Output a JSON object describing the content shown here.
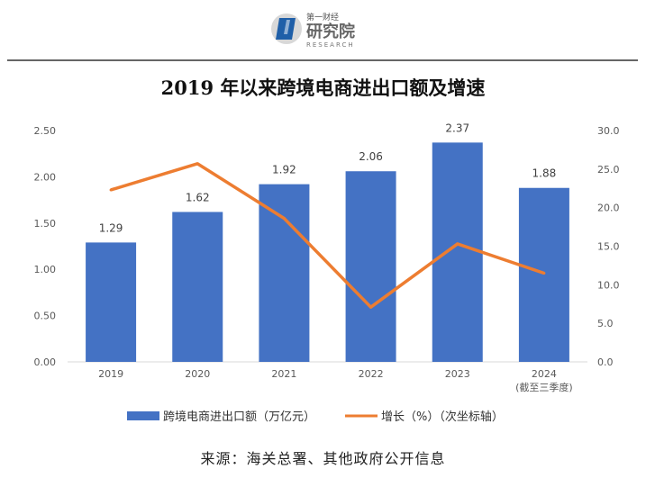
{
  "header": {
    "logo_top_text": "第一财经",
    "logo_main_text": "研究院",
    "logo_sub_text": "RESEARCH"
  },
  "chart_data": {
    "type": "bar",
    "title": "2019 年以来跨境电商进出口额及增速",
    "categories": [
      "2019",
      "2020",
      "2021",
      "2022",
      "2023",
      "2024"
    ],
    "category_sublabels": [
      "",
      "",
      "",
      "",
      "",
      "(截至三季度)"
    ],
    "series": [
      {
        "name": "跨境电商进出口额（万亿元）",
        "type": "bar",
        "axis": "left",
        "color": "#4472c4",
        "values": [
          1.29,
          1.62,
          1.92,
          2.06,
          2.37,
          1.88
        ],
        "data_labels": [
          "1.29",
          "1.62",
          "1.92",
          "2.06",
          "2.37",
          "1.88"
        ]
      },
      {
        "name": "增长（%）（次坐标轴）",
        "type": "line",
        "axis": "right",
        "color": "#ed7d31",
        "values": [
          22.3,
          25.7,
          18.6,
          7.1,
          15.3,
          11.5
        ]
      }
    ],
    "y_left": {
      "min": 0,
      "max": 2.5,
      "ticks": [
        "0.00",
        "0.50",
        "1.00",
        "1.50",
        "2.00",
        "2.50"
      ]
    },
    "y_right": {
      "min": 0,
      "max": 30,
      "ticks": [
        "0.0",
        "5.0",
        "10.0",
        "15.0",
        "20.0",
        "25.0",
        "30.0"
      ]
    },
    "grid": false,
    "legend_position": "bottom"
  },
  "source": "来源：海关总署、其他政府公开信息"
}
